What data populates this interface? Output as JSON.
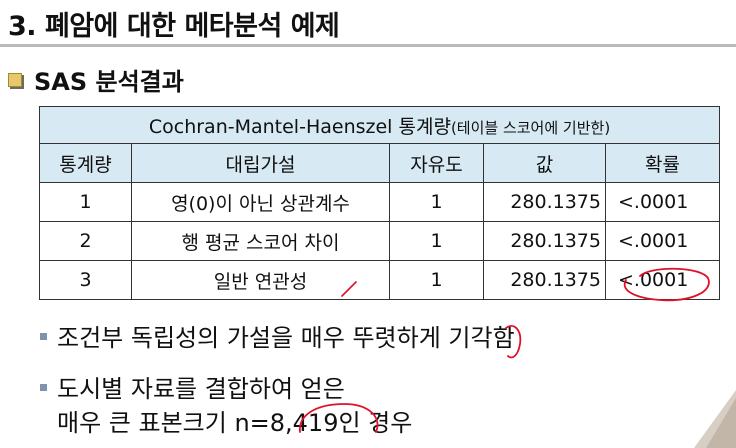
{
  "slide": {
    "title": "3. 폐암에 대한 메타분석 예제",
    "section": "SAS 분석결과"
  },
  "table": {
    "caption_main": "Cochran-Mantel-Haenszel 통계량",
    "caption_sub": "(테이블 스코어에 기반한)",
    "headers": [
      "통계량",
      "대립가설",
      "자유도",
      "값",
      "확률"
    ],
    "rows": [
      [
        "1",
        "영(0)이 아닌 상관계수",
        "1",
        "280.1375",
        "<.0001"
      ],
      [
        "2",
        "행 평균 스코어 차이",
        "1",
        "280.1375",
        "<.0001"
      ],
      [
        "3",
        "일반 연관성",
        "1",
        "280.1375",
        "<.0001"
      ]
    ]
  },
  "bullets": [
    {
      "lines": [
        "조건부 독립성의 가설을 매우 뚜렷하게 기각함"
      ]
    },
    {
      "lines": [
        "도시별 자료를 결합하여 얻은",
        "매우 큰 표본크기 n=8,419인 경우"
      ]
    }
  ],
  "colors": {
    "header_bg": "#d7e9f2",
    "annotation": "#e0102a",
    "bullet_square": "#7f93b0"
  }
}
